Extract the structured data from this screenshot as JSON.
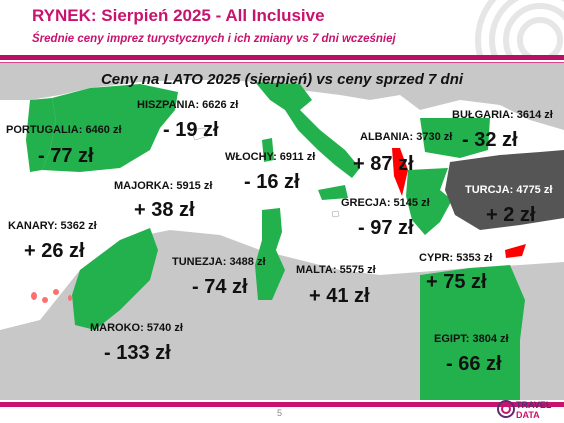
{
  "header": {
    "title": "RYNEK: Sierpień 2025 - All Inclusive",
    "subtitle": "Średnie ceny imprez turystycznych i ich zmiany vs 7 dni wcześniej"
  },
  "map": {
    "title": "Ceny na LATO 2025 (sierpień) vs ceny sprzed 7 dni",
    "colors": {
      "price_down": "#22b14c",
      "price_up_small": "#ffffff",
      "price_up": "#ff0000",
      "turkey": "#555555",
      "land": "#c8c8c8",
      "sea": "#ffffff"
    },
    "destinations": [
      {
        "label": "PORTUGALIA: 6460 zł",
        "change": "- 77 zł"
      },
      {
        "label": "HISZPANIA: 6626 zł",
        "change": "- 19 zł"
      },
      {
        "label": "WŁOCHY: 6911 zł",
        "change": "- 16 zł"
      },
      {
        "label": "ALBANIA: 3730 zł",
        "change": "+ 87 zł"
      },
      {
        "label": "BUŁGARIA: 3614 zł",
        "change": "- 32 zł"
      },
      {
        "label": "MAJORKA: 5915 zł",
        "change": "+ 38 zł"
      },
      {
        "label": "TURCJA: 4775 zł",
        "change": "+ 2 zł"
      },
      {
        "label": "GRECJA: 5145 zł",
        "change": "- 97 zł"
      },
      {
        "label": "KANARY: 5362 zł",
        "change": "+ 26 zł"
      },
      {
        "label": "TUNEZJA: 3488 zł",
        "change": "- 74 zł"
      },
      {
        "label": "MALTA: 5575 zł",
        "change": "+ 41 zł"
      },
      {
        "label": "CYPR: 5353 zł",
        "change": "+ 75 zł"
      },
      {
        "label": "MAROKO: 5740 zł",
        "change": "- 133 zł"
      },
      {
        "label": "EGIPT: 3804 zł",
        "change": "- 66 zł"
      }
    ]
  },
  "footer": {
    "page_number": "5",
    "logo_text_1": "TRAVEL",
    "logo_text_2": "DATA"
  }
}
